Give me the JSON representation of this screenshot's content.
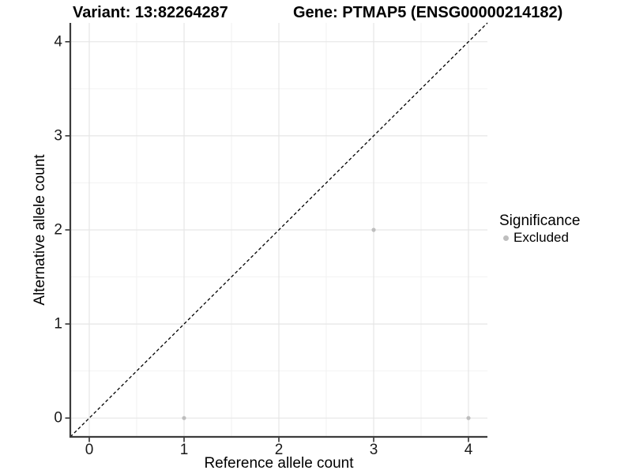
{
  "chart_data": {
    "type": "scatter",
    "title_left": "Variant: 13:82264287",
    "title_right": "Gene: PTMAP5 (ENSG00000214182)",
    "xlabel": "Reference allele count",
    "ylabel": "Alternative allele count",
    "xlim": [
      -0.2,
      4.2
    ],
    "ylim": [
      -0.2,
      4.2
    ],
    "xticks": [
      0,
      1,
      2,
      3,
      4
    ],
    "yticks": [
      0,
      1,
      2,
      3,
      4
    ],
    "xtick_labels": [
      "0",
      "1",
      "2",
      "3",
      "4"
    ],
    "ytick_labels": [
      "0",
      "1",
      "2",
      "3",
      "4"
    ],
    "minor_xticks": [
      0.5,
      1.5,
      2.5,
      3.5
    ],
    "minor_yticks": [
      0.5,
      1.5,
      2.5,
      3.5
    ],
    "grid": true,
    "series": [
      {
        "name": "Excluded",
        "color": "#bebebe",
        "points": [
          {
            "x": 1,
            "y": 0
          },
          {
            "x": 3,
            "y": 2
          },
          {
            "x": 4,
            "y": 0
          }
        ]
      }
    ],
    "reference_line": {
      "type": "identity",
      "slope": 1,
      "intercept": 0,
      "style": "dashed",
      "color": "#000000"
    },
    "legend": {
      "title": "Significance",
      "position": "right",
      "items": [
        {
          "label": "Excluded",
          "color": "#bebebe"
        }
      ]
    },
    "colors": {
      "point": "#bebebe",
      "axis_line": "#3c3c3c",
      "tick_mark": "#333333",
      "major_grid": "#e6e6e6",
      "minor_grid": "#f2f2f2",
      "text": "#1a1a1a",
      "background": "#ffffff"
    }
  }
}
